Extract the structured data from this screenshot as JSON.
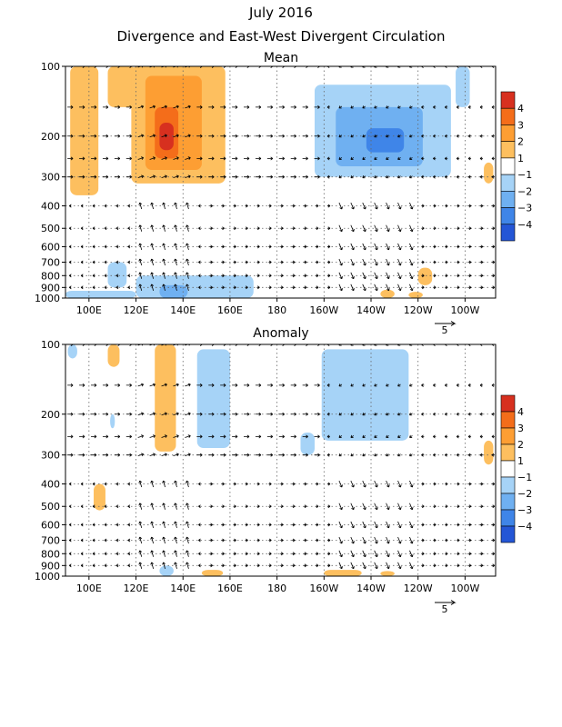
{
  "chart_data": [
    {
      "type": "heatmap",
      "title": "July 2016",
      "subtitle": "Divergence and East-West Divergent Circulation",
      "panel_title": "Mean",
      "x_ticks": [
        "100E",
        "120E",
        "140E",
        "160E",
        "180",
        "160W",
        "140W",
        "120W",
        "100W"
      ],
      "x_tick_values": [
        100,
        120,
        140,
        160,
        180,
        200,
        220,
        240,
        260
      ],
      "xlim": [
        90,
        273
      ],
      "y_ticks": [
        "100",
        "200",
        "300",
        "400",
        "500",
        "600",
        "700",
        "800",
        "900",
        "1000"
      ],
      "y_tick_values": [
        100,
        200,
        300,
        400,
        500,
        600,
        700,
        800,
        900,
        1000
      ],
      "ylim": [
        100,
        1000
      ],
      "y_scale": "log",
      "reference_vector_label": "5",
      "colorbar": {
        "labels": [
          "4",
          "3",
          "2",
          "1",
          "−1",
          "−2",
          "−3",
          "−4"
        ],
        "colors": [
          "#d7301f",
          "#f46d1a",
          "#fd9e33",
          "#fdbf5f",
          "#ffffff",
          "#a6d3f7",
          "#6fb0f1",
          "#3f85e8",
          "#2456d6",
          "#7b63d9"
        ]
      },
      "regions": [
        {
          "x": [
            92,
            104
          ],
          "p": [
            100,
            360
          ],
          "level": 1
        },
        {
          "x": [
            108,
            120
          ],
          "p": [
            100,
            150
          ],
          "level": 1
        },
        {
          "x": [
            118,
            158
          ],
          "p": [
            100,
            320
          ],
          "level": 1
        },
        {
          "x": [
            124,
            148
          ],
          "p": [
            110,
            280
          ],
          "level": 2
        },
        {
          "x": [
            128,
            138
          ],
          "p": [
            150,
            250
          ],
          "level": 3
        },
        {
          "x": [
            130,
            136
          ],
          "p": [
            175,
            230
          ],
          "level": 4
        },
        {
          "x": [
            196,
            254
          ],
          "p": [
            120,
            300
          ],
          "level": -1
        },
        {
          "x": [
            205,
            242
          ],
          "p": [
            150,
            270
          ],
          "level": -2
        },
        {
          "x": [
            218,
            234
          ],
          "p": [
            185,
            235
          ],
          "level": -3
        },
        {
          "x": [
            256,
            262
          ],
          "p": [
            100,
            150
          ],
          "level": -1
        },
        {
          "x": [
            108,
            116
          ],
          "p": [
            700,
            900
          ],
          "level": -1
        },
        {
          "x": [
            120,
            170
          ],
          "p": [
            800,
            1000
          ],
          "level": -1
        },
        {
          "x": [
            90,
            120
          ],
          "p": [
            930,
            1000
          ],
          "level": -1
        },
        {
          "x": [
            130,
            142
          ],
          "p": [
            880,
            1000
          ],
          "level": -2
        },
        {
          "x": [
            240,
            246
          ],
          "p": [
            740,
            880
          ],
          "level": 1
        },
        {
          "x": [
            224,
            230
          ],
          "p": [
            920,
            1000
          ],
          "level": 1
        },
        {
          "x": [
            236,
            242
          ],
          "p": [
            940,
            1000
          ],
          "level": 1
        },
        {
          "x": [
            268,
            272
          ],
          "p": [
            260,
            320
          ],
          "level": 1
        }
      ]
    },
    {
      "type": "heatmap",
      "panel_title": "Anomaly",
      "x_ticks": [
        "100E",
        "120E",
        "140E",
        "160E",
        "180",
        "160W",
        "140W",
        "120W",
        "100W"
      ],
      "x_tick_values": [
        100,
        120,
        140,
        160,
        180,
        200,
        220,
        240,
        260
      ],
      "xlim": [
        90,
        273
      ],
      "y_ticks": [
        "100",
        "200",
        "300",
        "400",
        "500",
        "600",
        "700",
        "800",
        "900",
        "1000"
      ],
      "y_tick_values": [
        100,
        200,
        300,
        400,
        500,
        600,
        700,
        800,
        900,
        1000
      ],
      "ylim": [
        100,
        1000
      ],
      "y_scale": "log",
      "reference_vector_label": "5",
      "colorbar": {
        "labels": [
          "4",
          "3",
          "2",
          "1",
          "−1",
          "−2",
          "−3",
          "−4"
        ],
        "colors": [
          "#d7301f",
          "#f46d1a",
          "#fd9e33",
          "#fdbf5f",
          "#ffffff",
          "#a6d3f7",
          "#6fb0f1",
          "#3f85e8",
          "#2456d6",
          "#7b63d9"
        ]
      },
      "regions": [
        {
          "x": [
            108,
            113
          ],
          "p": [
            100,
            125
          ],
          "level": 1
        },
        {
          "x": [
            128,
            137
          ],
          "p": [
            100,
            290
          ],
          "level": 1
        },
        {
          "x": [
            146,
            160
          ],
          "p": [
            105,
            280
          ],
          "level": -1
        },
        {
          "x": [
            199,
            236
          ],
          "p": [
            105,
            260
          ],
          "level": -1
        },
        {
          "x": [
            190,
            196
          ],
          "p": [
            240,
            300
          ],
          "level": -1
        },
        {
          "x": [
            91,
            95
          ],
          "p": [
            100,
            115
          ],
          "level": -1
        },
        {
          "x": [
            109,
            111
          ],
          "p": [
            200,
            230
          ],
          "level": -1
        },
        {
          "x": [
            102,
            107
          ],
          "p": [
            400,
            520
          ],
          "level": 1
        },
        {
          "x": [
            268,
            272
          ],
          "p": [
            260,
            330
          ],
          "level": 1
        },
        {
          "x": [
            130,
            136
          ],
          "p": [
            900,
            1000
          ],
          "level": -1
        },
        {
          "x": [
            148,
            157
          ],
          "p": [
            940,
            1000
          ],
          "level": 1
        },
        {
          "x": [
            200,
            216
          ],
          "p": [
            940,
            1000
          ],
          "level": 1
        },
        {
          "x": [
            224,
            230
          ],
          "p": [
            950,
            1000
          ],
          "level": 1
        }
      ]
    }
  ]
}
